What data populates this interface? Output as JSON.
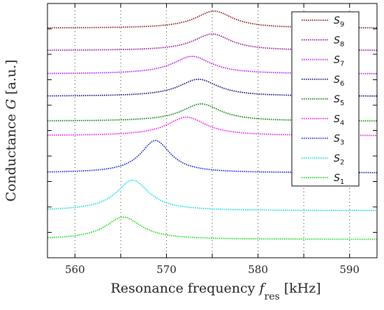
{
  "chart_data": {
    "type": "line",
    "xlabel": "Resonance frequency",
    "xlabel_var": "f",
    "xlabel_sub": "res",
    "xlabel_unit": "[kHz]",
    "ylabel": "Conductance",
    "ylabel_var": "G",
    "ylabel_unit": "[a.u.]",
    "xlim": [
      557,
      593
    ],
    "ylim": [
      0,
      1
    ],
    "xticks": [
      560,
      565,
      570,
      575,
      580,
      585,
      590
    ],
    "xtick_labels": [
      "560",
      "570",
      "580",
      "590"
    ],
    "yticks_count": 10,
    "grid": "vertical-dotted",
    "legend_position": "top-right",
    "series": [
      {
        "name": "S",
        "sub": "1",
        "color": "#22dd22",
        "peak": 565.3,
        "base": 0.072,
        "amp": 0.088,
        "width": 2.4
      },
      {
        "name": "S",
        "sub": "2",
        "color": "#22dddd",
        "peak": 566.3,
        "base": 0.185,
        "amp": 0.12,
        "width": 2.2
      },
      {
        "name": "S",
        "sub": "3",
        "color": "#1c2fd6",
        "peak": 568.8,
        "base": 0.334,
        "amp": 0.127,
        "width": 2.0
      },
      {
        "name": "S",
        "sub": "4",
        "color": "#ee22ee",
        "peak": 572.2,
        "base": 0.48,
        "amp": 0.073,
        "width": 2.6
      },
      {
        "name": "S",
        "sub": "5",
        "color": "#148814",
        "peak": 573.8,
        "base": 0.537,
        "amp": 0.068,
        "width": 2.6
      },
      {
        "name": "S",
        "sub": "6",
        "color": "#181a88",
        "peak": 573.5,
        "base": 0.635,
        "amp": 0.067,
        "width": 2.6
      },
      {
        "name": "S",
        "sub": "7",
        "color": "#bb22ee",
        "peak": 572.8,
        "base": 0.723,
        "amp": 0.069,
        "width": 2.6
      },
      {
        "name": "S",
        "sub": "8",
        "color": "#991e99",
        "peak": 575.0,
        "base": 0.815,
        "amp": 0.065,
        "width": 2.5
      },
      {
        "name": "S",
        "sub": "9",
        "color": "#992020",
        "peak": 575.2,
        "base": 0.903,
        "amp": 0.067,
        "width": 2.5
      }
    ]
  }
}
